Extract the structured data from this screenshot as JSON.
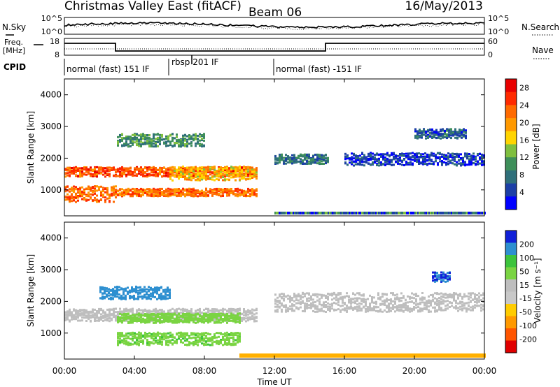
{
  "header": {
    "title": "Christmas Valley East (fitACF)",
    "beam": "Beam 06",
    "date": "16/May/2013"
  },
  "top_panels": {
    "left_labels": [
      "N.Sky",
      "Freq.",
      "[MHz]",
      "CPID"
    ],
    "right_labels": [
      "N.Search",
      "Nave"
    ],
    "nsky_ticks": [
      "10^5",
      "10^0"
    ],
    "nsearch_ticks": [
      "10^5",
      "10^0"
    ],
    "freq_ticks": [
      "18",
      "8"
    ],
    "nave_ticks": [
      "60",
      "0"
    ]
  },
  "cpid_segments": [
    {
      "label": "normal (fast) 151 IF",
      "start_hour": 0
    },
    {
      "label": "rbsp 201 IF",
      "start_hour": 6
    },
    {
      "label": "normal (fast) -151 IF",
      "start_hour": 12
    }
  ],
  "colors": {
    "power": [
      "#0000ff",
      "#1c3fa6",
      "#2f6f7a",
      "#3e8f5a",
      "#7fbf3f",
      "#ffd400",
      "#ff9900",
      "#ff6a00",
      "#ff2a00",
      "#e80000"
    ],
    "velocity": [
      "#1020d8",
      "#2d8fd0",
      "#3cc43c",
      "#7ad442",
      "#bebebe",
      "#c8c8c8",
      "#ffcc00",
      "#ff9900",
      "#ff5500",
      "#e00000"
    ]
  },
  "chart_data": [
    {
      "type": "heatmap",
      "name": "power",
      "ylabel": "Slant Range [km]",
      "yticks": [
        1000,
        2000,
        3000,
        4000
      ],
      "ylim": [
        180,
        4500
      ],
      "colorbar": {
        "label": "Power [dB]",
        "ticks": [
          4,
          8,
          12,
          16,
          20,
          24,
          28
        ],
        "range": [
          0,
          30
        ]
      },
      "bands": [
        {
          "t0": 0,
          "t1": 11,
          "r": 1600,
          "dr": 150,
          "level": 28
        },
        {
          "t0": 0,
          "t1": 3,
          "r": 900,
          "dr": 250,
          "level": 27
        },
        {
          "t0": 3,
          "t1": 11,
          "r": 950,
          "dr": 120,
          "level": 26
        },
        {
          "t0": 6,
          "t1": 11,
          "r": 1550,
          "dr": 220,
          "level": 22
        },
        {
          "t0": 3,
          "t1": 8,
          "r": 2600,
          "dr": 200,
          "level": 14
        },
        {
          "t0": 12,
          "t1": 15,
          "r": 2000,
          "dr": 150,
          "level": 12
        },
        {
          "t0": 16,
          "t1": 24,
          "r": 2000,
          "dr": 200,
          "level": 8
        },
        {
          "t0": 20,
          "t1": 23,
          "r": 2800,
          "dr": 150,
          "level": 10
        }
      ]
    },
    {
      "type": "heatmap",
      "name": "velocity",
      "ylabel": "Slant Range [km]",
      "yticks": [
        1000,
        2000,
        3000,
        4000
      ],
      "ylim": [
        180,
        4500
      ],
      "colorbar": {
        "label": "Velocity [m s⁻¹]",
        "ticks": [
          200,
          100,
          50,
          15,
          -15,
          -50,
          -100,
          -200
        ]
      },
      "xlabel": "Time UT",
      "xticks": [
        "00:00",
        "04:00",
        "08:00",
        "12:00",
        "16:00",
        "20:00",
        "00:00"
      ],
      "xlim": [
        0,
        24
      ],
      "bands": [
        {
          "t0": 0,
          "t1": 11,
          "r": 1600,
          "dr": 200,
          "v": 0
        },
        {
          "t0": 2,
          "t1": 6,
          "r": 2300,
          "dr": 200,
          "v": 180
        },
        {
          "t0": 3,
          "t1": 10,
          "r": 1500,
          "dr": 150,
          "v": 30
        },
        {
          "t0": 3,
          "t1": 10,
          "r": 850,
          "dr": 200,
          "v": 40
        },
        {
          "t0": 12,
          "t1": 24,
          "r": 2000,
          "dr": 300,
          "v": 0
        },
        {
          "t0": 21,
          "t1": 22,
          "r": 2800,
          "dr": 150,
          "v": 200
        }
      ]
    }
  ]
}
